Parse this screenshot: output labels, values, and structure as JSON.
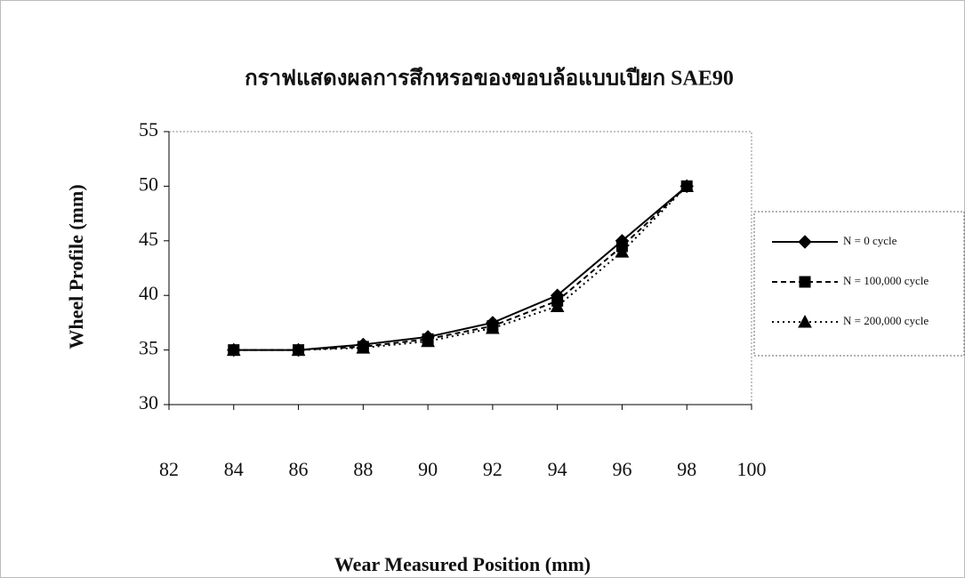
{
  "chart_data": {
    "type": "line",
    "title": "กราฟแสดงผลการสึกหรอของขอบล้อแบบเปียก SAE90",
    "x_label": "Wear Measured Position (mm)",
    "y_label": "Wheel Profile (mm)",
    "x": [
      84,
      86,
      88,
      90,
      92,
      94,
      96,
      98
    ],
    "series": [
      {
        "name": "N = 0 cycle",
        "color": "#000000",
        "line_style": "solid",
        "marker": "diamond",
        "values": [
          35,
          35,
          35.5,
          36.2,
          37.5,
          40,
          45,
          50
        ]
      },
      {
        "name": "N = 100,000 cycle",
        "color": "#000000",
        "line_style": "dashed",
        "marker": "square",
        "values": [
          35,
          35,
          35.3,
          36,
          37.2,
          39.5,
          44.5,
          50
        ]
      },
      {
        "name": "N = 200,000 cycle",
        "color": "#000000",
        "line_style": "dotted",
        "marker": "triangle",
        "values": [
          35,
          35,
          35.2,
          35.8,
          37,
          39,
          44,
          50
        ]
      }
    ],
    "xlim": [
      82,
      100
    ],
    "xticks": [
      82,
      84,
      86,
      88,
      90,
      92,
      94,
      96,
      98,
      100
    ],
    "ylim": [
      30,
      55
    ],
    "yticks": [
      30,
      35,
      40,
      45,
      50,
      55
    ],
    "grid": false,
    "legend": "right"
  }
}
